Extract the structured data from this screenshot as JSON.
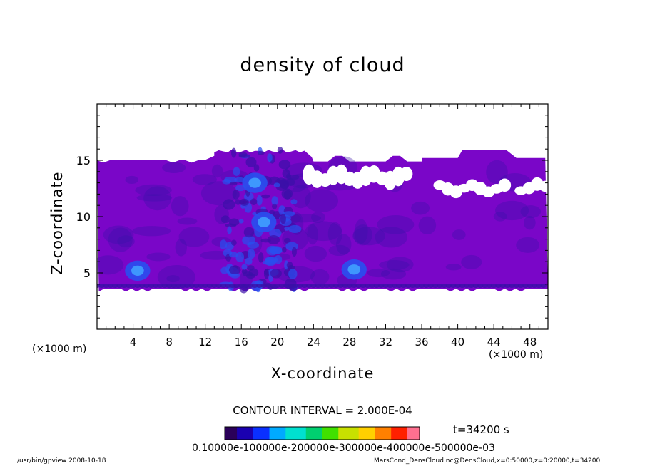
{
  "chart_data": {
    "type": "heatmap",
    "title": "density of cloud",
    "xlabel": "X-coordinate",
    "ylabel": "Z-coordinate",
    "x_unit_label": "(×1000 m)",
    "xlim": [
      0,
      50
    ],
    "ylim": [
      0,
      20
    ],
    "x_ticks": [
      4,
      8,
      12,
      16,
      20,
      24,
      28,
      32,
      36,
      40,
      44,
      48
    ],
    "y_ticks": [
      5,
      10,
      15
    ],
    "cloud_layer": {
      "z_bottom": 3.6,
      "z_top": 15.0,
      "x_start": 0,
      "x_end": 50
    },
    "convective_column": {
      "x_min": 13,
      "x_max": 23,
      "z_top": 16.0
    },
    "bump_right": {
      "x_min": 36,
      "x_max": 50,
      "z_top": 15.9
    },
    "gap_regions": [
      {
        "x": [
          23.5,
          35
        ],
        "z": [
          12.6,
          14.4
        ]
      },
      {
        "x": [
          38,
          46
        ],
        "z": [
          11.9,
          13.1
        ]
      },
      {
        "x": [
          47,
          50
        ],
        "z": [
          12.0,
          13.2
        ]
      }
    ],
    "dense_spots": [
      {
        "x": 4.5,
        "z": 5.2,
        "value": 0.00042
      },
      {
        "x": 18.5,
        "z": 9.5,
        "value": 0.0005
      },
      {
        "x": 28.5,
        "z": 5.3,
        "value": 0.00038
      },
      {
        "x": 17.5,
        "z": 13.0,
        "value": 0.00035
      }
    ],
    "background_value": 0.0001,
    "contour_interval_text": "CONTOUR INTERVAL = 2.000E-04",
    "colorbar": {
      "min": 0.0001,
      "max": 0.0005,
      "label_text": "0.10000e-100000e-200000e-300000e-400000e-500000e-03",
      "colors": [
        "#2a0059",
        "#1a00b0",
        "#0a30ff",
        "#00aaff",
        "#00e0d0",
        "#00d070",
        "#40e000",
        "#c8e000",
        "#ffd000",
        "#ff8000",
        "#ff2000",
        "#ff7090"
      ]
    },
    "colors": {
      "cloud_base": "#7a06c8",
      "cloud_dark": "#3a10a8",
      "dense": "#2850f0",
      "very_dense": "#40a0ff"
    }
  },
  "time_label": "t=34200 s",
  "footer": {
    "left": "/usr/bin/gpview   2008-10-18",
    "right": "MarsCond_DensCloud.nc@DensCloud,x=0:50000,z=0:20000,t=34200"
  }
}
